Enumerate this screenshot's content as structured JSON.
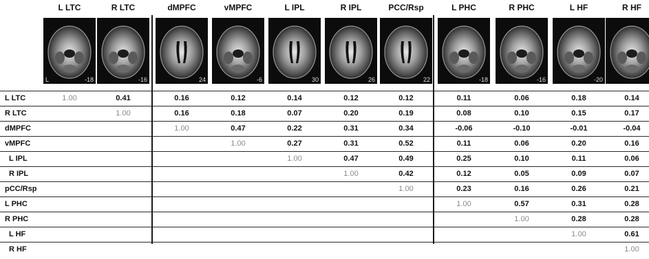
{
  "columns": [
    {
      "label": "L LTC",
      "slice": "-18",
      "side": "L"
    },
    {
      "label": "R LTC",
      "slice": "-16",
      "side": ""
    },
    {
      "label": "dMPFC",
      "slice": "24",
      "side": ""
    },
    {
      "label": "vMPFC",
      "slice": "-6",
      "side": ""
    },
    {
      "label": "L IPL",
      "slice": "30",
      "side": ""
    },
    {
      "label": "R IPL",
      "slice": "26",
      "side": ""
    },
    {
      "label": "PCC/Rsp",
      "slice": "22",
      "side": ""
    },
    {
      "label": "L PHC",
      "slice": "-18",
      "side": ""
    },
    {
      "label": "R PHC",
      "slice": "-16",
      "side": ""
    },
    {
      "label": "L HF",
      "slice": "-20",
      "side": ""
    },
    {
      "label": "R HF",
      "slice": "",
      "side": ""
    }
  ],
  "rows": [
    {
      "label": "L LTC",
      "values": [
        "1.00",
        "0.41",
        "0.16",
        "0.12",
        "0.14",
        "0.12",
        "0.12",
        "0.11",
        "0.06",
        "0.18",
        "0.14"
      ]
    },
    {
      "label": "R LTC",
      "values": [
        "",
        "1.00",
        "0.16",
        "0.18",
        "0.07",
        "0.20",
        "0.19",
        "0.08",
        "0.10",
        "0.15",
        "0.17"
      ]
    },
    {
      "label": "dMPFC",
      "values": [
        "",
        "",
        "1.00",
        "0.47",
        "0.22",
        "0.31",
        "0.34",
        "-0.06",
        "-0.10",
        "-0.01",
        "-0.04"
      ]
    },
    {
      "label": "vMPFC",
      "values": [
        "",
        "",
        "",
        "1.00",
        "0.27",
        "0.31",
        "0.52",
        "0.11",
        "0.06",
        "0.20",
        "0.16"
      ]
    },
    {
      "label": "L IPL",
      "values": [
        "",
        "",
        "",
        "",
        "1.00",
        "0.47",
        "0.49",
        "0.25",
        "0.10",
        "0.11",
        "0.06"
      ]
    },
    {
      "label": "R IPL",
      "values": [
        "",
        "",
        "",
        "",
        "",
        "1.00",
        "0.42",
        "0.12",
        "0.05",
        "0.09",
        "0.07"
      ]
    },
    {
      "label": "pCC/Rsp",
      "values": [
        "",
        "",
        "",
        "",
        "",
        "",
        "1.00",
        "0.23",
        "0.16",
        "0.26",
        "0.21"
      ]
    },
    {
      "label": "L PHC",
      "values": [
        "",
        "",
        "",
        "",
        "",
        "",
        "",
        "1.00",
        "0.57",
        "0.31",
        "0.28"
      ]
    },
    {
      "label": "R PHC",
      "values": [
        "",
        "",
        "",
        "",
        "",
        "",
        "",
        "",
        "1.00",
        "0.28",
        "0.28"
      ]
    },
    {
      "label": "L HF",
      "values": [
        "",
        "",
        "",
        "",
        "",
        "",
        "",
        "",
        "",
        "1.00",
        "0.61"
      ]
    },
    {
      "label": "R HF",
      "values": [
        "",
        "",
        "",
        "",
        "",
        "",
        "",
        "",
        "",
        "",
        "1.00"
      ]
    }
  ]
}
